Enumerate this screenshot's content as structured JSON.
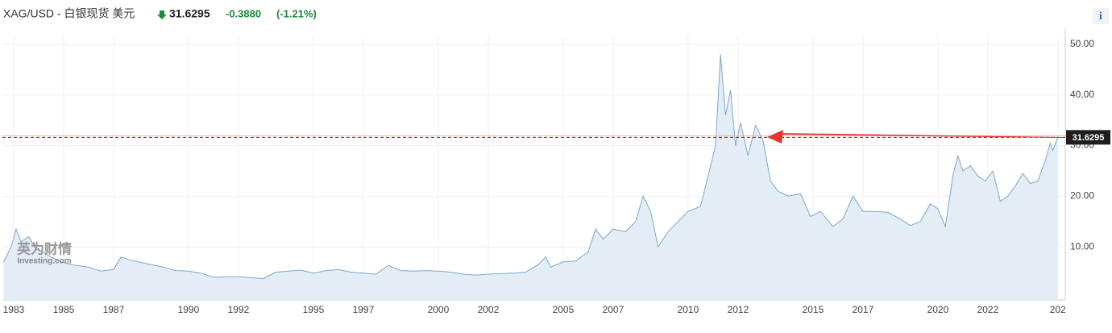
{
  "header": {
    "symbol": "XAG/USD - 白银现货 美元",
    "change": "-0.3880",
    "change_pct": "(-1.21%)",
    "info": "i"
  },
  "watermark": {
    "cn": "英为财情",
    "en": "Investing.com"
  },
  "chart_data": {
    "type": "area",
    "x": [
      1982.6,
      1982.9,
      1983.1,
      1983.3,
      1983.6,
      1983.9,
      1984.2,
      1984.5,
      1984.9,
      1985.5,
      1986.0,
      1986.5,
      1987.0,
      1987.3,
      1987.6,
      1988.0,
      1988.5,
      1989.0,
      1989.5,
      1990.0,
      1990.5,
      1991.0,
      1991.5,
      1992.0,
      1992.5,
      1993.0,
      1993.5,
      1994.0,
      1994.5,
      1995.0,
      1995.5,
      1996.0,
      1996.5,
      1997.0,
      1997.5,
      1998.0,
      1998.5,
      1999.0,
      1999.5,
      2000.0,
      2000.5,
      2001.0,
      2001.5,
      2002.0,
      2002.5,
      2003.0,
      2003.5,
      2004.0,
      2004.3,
      2004.5,
      2005.0,
      2005.5,
      2006.0,
      2006.3,
      2006.6,
      2007.0,
      2007.5,
      2007.9,
      2008.2,
      2008.5,
      2008.8,
      2009.2,
      2009.6,
      2010.0,
      2010.5,
      2010.9,
      2011.1,
      2011.3,
      2011.5,
      2011.7,
      2011.9,
      2012.1,
      2012.4,
      2012.7,
      2013.0,
      2013.3,
      2013.6,
      2014.0,
      2014.5,
      2014.9,
      2015.3,
      2015.8,
      2016.2,
      2016.6,
      2017.0,
      2017.5,
      2018.0,
      2018.5,
      2018.9,
      2019.3,
      2019.7,
      2020.0,
      2020.3,
      2020.6,
      2020.8,
      2021.0,
      2021.3,
      2021.6,
      2021.9,
      2022.2,
      2022.5,
      2022.8,
      2023.1,
      2023.4,
      2023.7,
      2024.0,
      2024.3,
      2024.5,
      2024.6,
      2024.8
    ],
    "values": [
      7.0,
      10.0,
      13.5,
      11.0,
      12.0,
      9.5,
      9.0,
      8.0,
      7.0,
      6.3,
      6.0,
      5.2,
      5.5,
      8.0,
      7.5,
      7.0,
      6.5,
      6.0,
      5.3,
      5.2,
      4.8,
      4.0,
      4.1,
      4.1,
      3.9,
      3.7,
      5.0,
      5.2,
      5.4,
      4.8,
      5.3,
      5.5,
      5.0,
      4.8,
      4.6,
      6.3,
      5.3,
      5.2,
      5.3,
      5.2,
      5.0,
      4.6,
      4.4,
      4.6,
      4.7,
      4.8,
      5.0,
      6.5,
      8.0,
      6.0,
      7.0,
      7.2,
      9.0,
      13.5,
      11.5,
      13.5,
      13.0,
      15.0,
      20.0,
      17.0,
      10.0,
      13.0,
      15.0,
      17.0,
      18.0,
      26.0,
      30.0,
      48.0,
      36.0,
      41.0,
      30.0,
      34.5,
      28.0,
      34.0,
      31.0,
      23.0,
      21.0,
      20.0,
      20.5,
      16.0,
      17.0,
      14.0,
      15.5,
      20.0,
      17.0,
      17.0,
      16.8,
      15.5,
      14.2,
      15.0,
      18.5,
      17.5,
      14.0,
      24.0,
      28.0,
      25.0,
      26.0,
      24.0,
      23.0,
      25.0,
      19.0,
      20.0,
      22.0,
      24.5,
      22.5,
      23.0,
      27.0,
      30.5,
      29.0,
      31.6295
    ],
    "color": "#7aa8cf",
    "price_line": 31.6295,
    "xlim": [
      1982.55,
      2025.1
    ],
    "ylim": [
      -0.5,
      51.6
    ],
    "xticks": [
      1983,
      1985,
      1987,
      1990,
      1992,
      1995,
      1997,
      2000,
      2002,
      2005,
      2007,
      2010,
      2012,
      2015,
      2017,
      2020,
      2022,
      {
        "value": 2024.8,
        "label": "202"
      }
    ],
    "yticks": [
      {
        "value": 10,
        "label": "10.00"
      },
      {
        "value": 20,
        "label": "20.00"
      },
      {
        "value": 30,
        "label": "30.00"
      },
      {
        "value": 40,
        "label": "40.00"
      },
      {
        "value": 50,
        "label": "50.00"
      }
    ],
    "grid": true
  }
}
